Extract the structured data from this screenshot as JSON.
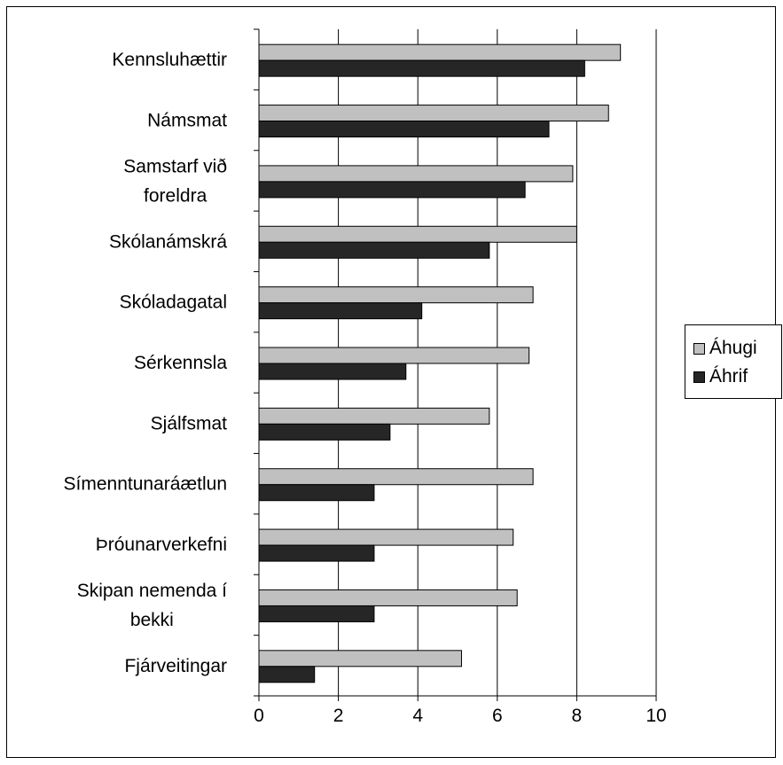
{
  "chart_data": {
    "type": "bar",
    "orientation": "horizontal",
    "categories": [
      [
        "Kennsluhættir"
      ],
      [
        "Námsmat"
      ],
      [
        "Samstarf við",
        "foreldra"
      ],
      [
        "Skólanámskrá"
      ],
      [
        "Skóladagatal"
      ],
      [
        "Sérkennsla"
      ],
      [
        "Sjálfsmat"
      ],
      [
        "Símenntunaráætlun"
      ],
      [
        "Þróunarverkefni"
      ],
      [
        "Skipan nemenda í",
        "bekki"
      ],
      [
        "Fjárveitingar"
      ]
    ],
    "series": [
      {
        "name": "Áhugi",
        "color": "#c0c0c0",
        "values": [
          9.1,
          8.8,
          7.9,
          8.0,
          6.9,
          6.8,
          5.8,
          6.9,
          6.4,
          6.5,
          5.1
        ]
      },
      {
        "name": "Áhrif",
        "color": "#262626",
        "values": [
          8.2,
          7.3,
          6.7,
          5.8,
          4.1,
          3.7,
          3.3,
          2.9,
          2.9,
          2.9,
          1.4
        ]
      }
    ],
    "xlim": [
      0,
      10
    ],
    "xticks": [
      "0",
      "2",
      "4",
      "6",
      "8",
      "10"
    ],
    "grid": "vertical",
    "legend_position": "right"
  }
}
